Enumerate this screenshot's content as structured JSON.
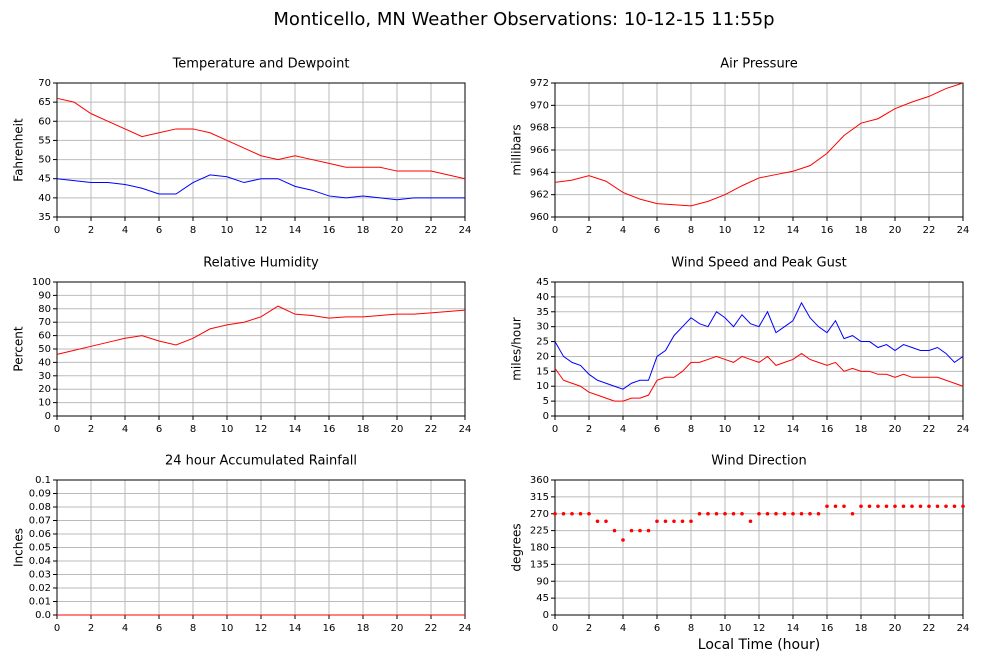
{
  "title": "Monticello, MN Weather Observations: 10-12-15 11:55p",
  "chart_data": [
    {
      "type": "line",
      "title": "Temperature and Dewpoint",
      "ylabel": "Fahrenheit",
      "x": [
        0,
        1,
        2,
        3,
        4,
        5,
        6,
        7,
        8,
        9,
        10,
        11,
        12,
        13,
        14,
        15,
        16,
        17,
        18,
        19,
        20,
        21,
        22,
        23,
        24
      ],
      "xlim": [
        0,
        24
      ],
      "xticks": [
        0,
        2,
        4,
        6,
        8,
        10,
        12,
        14,
        16,
        18,
        20,
        22,
        24
      ],
      "ylim": [
        35,
        70
      ],
      "yticks": [
        35,
        40,
        45,
        50,
        55,
        60,
        65,
        70
      ],
      "grid": true,
      "series": [
        {
          "color": "#ff0000",
          "values": [
            66,
            65,
            62,
            60,
            58,
            56,
            57,
            58,
            58,
            57,
            55,
            53,
            51,
            50,
            51,
            50,
            49,
            48,
            48,
            48,
            47,
            47,
            47,
            46,
            45
          ]
        },
        {
          "color": "#0000ff",
          "values": [
            45,
            44.5,
            44,
            44,
            43.5,
            42.5,
            41,
            41,
            44,
            46,
            45.5,
            44,
            45,
            45,
            43,
            42,
            40.5,
            40,
            40.5,
            40,
            39.5,
            40,
            40,
            40,
            40
          ]
        }
      ]
    },
    {
      "type": "line",
      "title": "Air Pressure",
      "ylabel": "millibars",
      "x": [
        0,
        1,
        2,
        3,
        4,
        5,
        6,
        7,
        8,
        9,
        10,
        11,
        12,
        13,
        14,
        15,
        16,
        17,
        18,
        19,
        20,
        21,
        22,
        23,
        24
      ],
      "xlim": [
        0,
        24
      ],
      "xticks": [
        0,
        2,
        4,
        6,
        8,
        10,
        12,
        14,
        16,
        18,
        20,
        22,
        24
      ],
      "ylim": [
        960,
        972
      ],
      "yticks": [
        960,
        962,
        964,
        966,
        968,
        970,
        972
      ],
      "grid": true,
      "series": [
        {
          "color": "#ff0000",
          "values": [
            963.1,
            963.3,
            963.7,
            963.2,
            962.2,
            961.6,
            961.2,
            961.1,
            961.0,
            961.4,
            962.0,
            962.8,
            963.5,
            963.8,
            964.1,
            964.6,
            965.7,
            967.3,
            968.4,
            968.8,
            969.7,
            970.3,
            970.8,
            971.5,
            972.0
          ]
        }
      ]
    },
    {
      "type": "line",
      "title": "Relative Humidity",
      "ylabel": "Percent",
      "x": [
        0,
        1,
        2,
        3,
        4,
        5,
        6,
        7,
        8,
        9,
        10,
        11,
        12,
        13,
        14,
        15,
        16,
        17,
        18,
        19,
        20,
        21,
        22,
        23,
        24
      ],
      "xlim": [
        0,
        24
      ],
      "xticks": [
        0,
        2,
        4,
        6,
        8,
        10,
        12,
        14,
        16,
        18,
        20,
        22,
        24
      ],
      "ylim": [
        0,
        100
      ],
      "yticks": [
        0,
        10,
        20,
        30,
        40,
        50,
        60,
        70,
        80,
        90,
        100
      ],
      "grid": true,
      "series": [
        {
          "color": "#ff0000",
          "values": [
            46,
            49,
            52,
            55,
            58,
            60,
            56,
            53,
            58,
            65,
            68,
            70,
            74,
            82,
            76,
            75,
            73,
            74,
            74,
            75,
            76,
            76,
            77,
            78,
            79
          ]
        }
      ]
    },
    {
      "type": "line",
      "title": "Wind Speed and Peak Gust",
      "ylabel": "miles/hour",
      "x": [
        0,
        0.5,
        1,
        1.5,
        2,
        2.5,
        3,
        3.5,
        4,
        4.5,
        5,
        5.5,
        6,
        6.5,
        7,
        7.5,
        8,
        8.5,
        9,
        9.5,
        10,
        10.5,
        11,
        11.5,
        12,
        12.5,
        13,
        13.5,
        14,
        14.5,
        15,
        15.5,
        16,
        16.5,
        17,
        17.5,
        18,
        18.5,
        19,
        19.5,
        20,
        20.5,
        21,
        21.5,
        22,
        22.5,
        23,
        23.5,
        24
      ],
      "xlim": [
        0,
        24
      ],
      "xticks": [
        0,
        2,
        4,
        6,
        8,
        10,
        12,
        14,
        16,
        18,
        20,
        22,
        24
      ],
      "ylim": [
        0,
        45
      ],
      "yticks": [
        0,
        5,
        10,
        15,
        20,
        25,
        30,
        35,
        40,
        45
      ],
      "grid": true,
      "series": [
        {
          "color": "#0000ff",
          "values": [
            25,
            20,
            18,
            17,
            14,
            12,
            11,
            10,
            9,
            11,
            12,
            12,
            20,
            22,
            27,
            30,
            33,
            31,
            30,
            35,
            33,
            30,
            34,
            31,
            30,
            35,
            28,
            30,
            32,
            38,
            33,
            30,
            28,
            32,
            26,
            27,
            25,
            25,
            23,
            24,
            22,
            24,
            23,
            22,
            22,
            23,
            21,
            18,
            20
          ]
        },
        {
          "color": "#ff0000",
          "values": [
            16,
            12,
            11,
            10,
            8,
            7,
            6,
            5,
            5,
            6,
            6,
            7,
            12,
            13,
            13,
            15,
            18,
            18,
            19,
            20,
            19,
            18,
            20,
            19,
            18,
            20,
            17,
            18,
            19,
            21,
            19,
            18,
            17,
            18,
            15,
            16,
            15,
            15,
            14,
            14,
            13,
            14,
            13,
            13,
            13,
            13,
            12,
            11,
            10
          ]
        }
      ]
    },
    {
      "type": "line",
      "title": "24 hour Accumulated Rainfall",
      "ylabel": "Inches",
      "x": [
        0,
        24
      ],
      "xlim": [
        0,
        24
      ],
      "xticks": [
        0,
        2,
        4,
        6,
        8,
        10,
        12,
        14,
        16,
        18,
        20,
        22,
        24
      ],
      "ylim": [
        0,
        0.1
      ],
      "yticks": [
        {
          "value": 0,
          "label": "0.0"
        },
        0.01,
        0.02,
        0.03,
        0.04,
        0.05,
        0.06,
        0.07,
        0.08,
        0.09,
        0.1
      ],
      "grid": true,
      "series": [
        {
          "color": "#ff0000",
          "values": [
            0,
            0
          ]
        }
      ]
    },
    {
      "type": "scatter",
      "title": "Wind Direction",
      "ylabel": "degrees",
      "xlabel": "Local Time (hour)",
      "x": [
        0,
        0.5,
        1,
        1.5,
        2,
        2.5,
        3,
        3.5,
        4,
        4.5,
        5,
        5.5,
        6,
        6.5,
        7,
        7.5,
        8,
        8.5,
        9,
        9.5,
        10,
        10.5,
        11,
        11.5,
        12,
        12.5,
        13,
        13.5,
        14,
        14.5,
        15,
        15.5,
        16,
        16.5,
        17,
        17.5,
        18,
        18.5,
        19,
        19.5,
        20,
        20.5,
        21,
        21.5,
        22,
        22.5,
        23,
        23.5,
        24
      ],
      "xlim": [
        0,
        24
      ],
      "xticks": [
        0,
        2,
        4,
        6,
        8,
        10,
        12,
        14,
        16,
        18,
        20,
        22,
        24
      ],
      "ylim": [
        0,
        360
      ],
      "yticks": [
        0,
        45,
        90,
        135,
        180,
        225,
        270,
        315,
        360
      ],
      "grid": true,
      "series": [
        {
          "color": "#ff0000",
          "values": [
            270,
            270,
            270,
            270,
            270,
            250,
            250,
            225,
            200,
            225,
            225,
            225,
            250,
            250,
            250,
            250,
            250,
            270,
            270,
            270,
            270,
            270,
            270,
            250,
            270,
            270,
            270,
            270,
            270,
            270,
            270,
            270,
            290,
            290,
            290,
            270,
            290,
            290,
            290,
            290,
            290,
            290,
            290,
            290,
            290,
            290,
            290,
            290,
            290
          ]
        }
      ]
    }
  ]
}
